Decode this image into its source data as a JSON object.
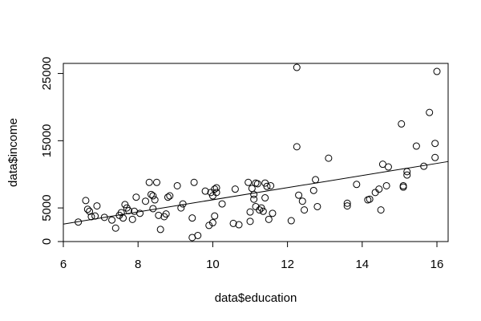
{
  "chart_data": {
    "type": "scatter",
    "xlabel": "data$education",
    "ylabel": "data$income",
    "xlim": [
      6,
      16.3
    ],
    "ylim": [
      0,
      26500
    ],
    "x_ticks": [
      6,
      8,
      10,
      12,
      14,
      16
    ],
    "y_ticks": [
      0,
      5000,
      15000,
      25000
    ],
    "grid": false,
    "point_style": "open-circle",
    "fit_line": {
      "type": "linear",
      "x": [
        6,
        16.3
      ],
      "y": [
        2600,
        11900
      ]
    },
    "series": [
      {
        "x": [
          6.4,
          6.6,
          6.65,
          6.7,
          6.75,
          6.85,
          6.9,
          7.1,
          7.3,
          7.4,
          7.5,
          7.55,
          7.6,
          7.65,
          7.7,
          7.75,
          7.85,
          7.9,
          7.95,
          8.05,
          8.2,
          8.3,
          8.35,
          8.4,
          8.4,
          8.45,
          8.5,
          8.55,
          8.6,
          8.7,
          8.75,
          8.8,
          8.85,
          9.05,
          9.15,
          9.2,
          9.45,
          9.45,
          9.5,
          9.6,
          9.8,
          9.9,
          9.95,
          10.0,
          10.0,
          10.05,
          10.05,
          10.1,
          10.1,
          10.25,
          10.55,
          10.6,
          10.7,
          10.95,
          11.0,
          11.0,
          11.05,
          11.1,
          11.1,
          11.15,
          11.15,
          11.2,
          11.25,
          11.3,
          11.35,
          11.4,
          11.4,
          11.45,
          11.5,
          11.55,
          11.6,
          12.1,
          12.25,
          12.25,
          12.3,
          12.4,
          12.45,
          12.7,
          12.75,
          12.8,
          13.1,
          13.6,
          13.6,
          13.85,
          14.15,
          14.2,
          14.35,
          14.45,
          14.5,
          14.55,
          14.65,
          14.7,
          15.05,
          15.1,
          15.1,
          15.2,
          15.2,
          15.45,
          15.65,
          15.8,
          15.95,
          15.95,
          16.0
        ],
        "y": [
          2900,
          6100,
          4800,
          4500,
          3700,
          3800,
          5300,
          3600,
          3200,
          2000,
          3900,
          4300,
          3500,
          5500,
          5000,
          4600,
          3300,
          4500,
          6600,
          4200,
          6000,
          8800,
          7000,
          6800,
          4900,
          6200,
          8800,
          3900,
          1800,
          3700,
          4100,
          6600,
          6800,
          8300,
          5000,
          5600,
          600,
          3500,
          8800,
          900,
          7500,
          2400,
          7300,
          6800,
          2800,
          7800,
          3800,
          8000,
          7300,
          5600,
          2700,
          7800,
          2500,
          8800,
          4400,
          3000,
          7900,
          6300,
          7000,
          8700,
          5200,
          8600,
          4700,
          5000,
          4500,
          8700,
          6500,
          8200,
          3300,
          8300,
          4200,
          3100,
          25900,
          14100,
          6900,
          6000,
          4700,
          7600,
          9200,
          5200,
          12400,
          5300,
          5700,
          8500,
          6200,
          6300,
          7300,
          7800,
          4700,
          11500,
          8300,
          11100,
          17500,
          8300,
          8100,
          9900,
          10400,
          14200,
          11200,
          19200,
          12500,
          14600,
          25300
        ]
      }
    ]
  }
}
